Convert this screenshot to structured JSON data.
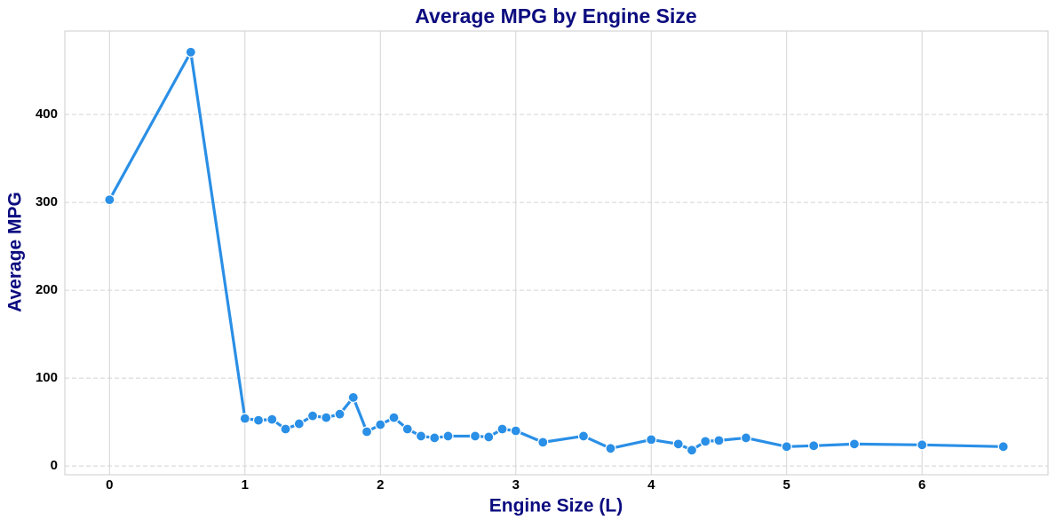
{
  "chart_data": {
    "type": "line",
    "title": "Average MPG by Engine Size",
    "x_label": "Engine Size (L)",
    "y_label": "Average MPG",
    "x": [
      0,
      0.6,
      1.0,
      1.1,
      1.2,
      1.3,
      1.4,
      1.5,
      1.6,
      1.7,
      1.8,
      1.9,
      2.0,
      2.1,
      2.2,
      2.3,
      2.4,
      2.5,
      2.7,
      2.8,
      2.9,
      3.0,
      3.2,
      3.5,
      3.7,
      4.0,
      4.2,
      4.3,
      4.4,
      4.5,
      4.7,
      5.0,
      5.2,
      5.5,
      6.0,
      6.6
    ],
    "values": [
      303,
      471,
      54,
      52,
      53,
      42,
      48,
      57,
      55,
      59,
      78,
      39,
      47,
      55,
      42,
      34,
      32,
      34,
      34,
      33,
      42,
      40,
      27,
      34,
      20,
      30,
      25,
      18,
      28,
      29,
      32,
      22,
      23,
      25,
      24,
      22
    ],
    "color": "#2a8fe6",
    "xlim": [
      -0.33,
      6.93
    ],
    "ylim": [
      -10,
      495
    ],
    "xticks": [
      0,
      1,
      2,
      3,
      4,
      5,
      6
    ],
    "yticks": [
      0,
      100,
      200,
      300,
      400
    ],
    "grid": true
  }
}
